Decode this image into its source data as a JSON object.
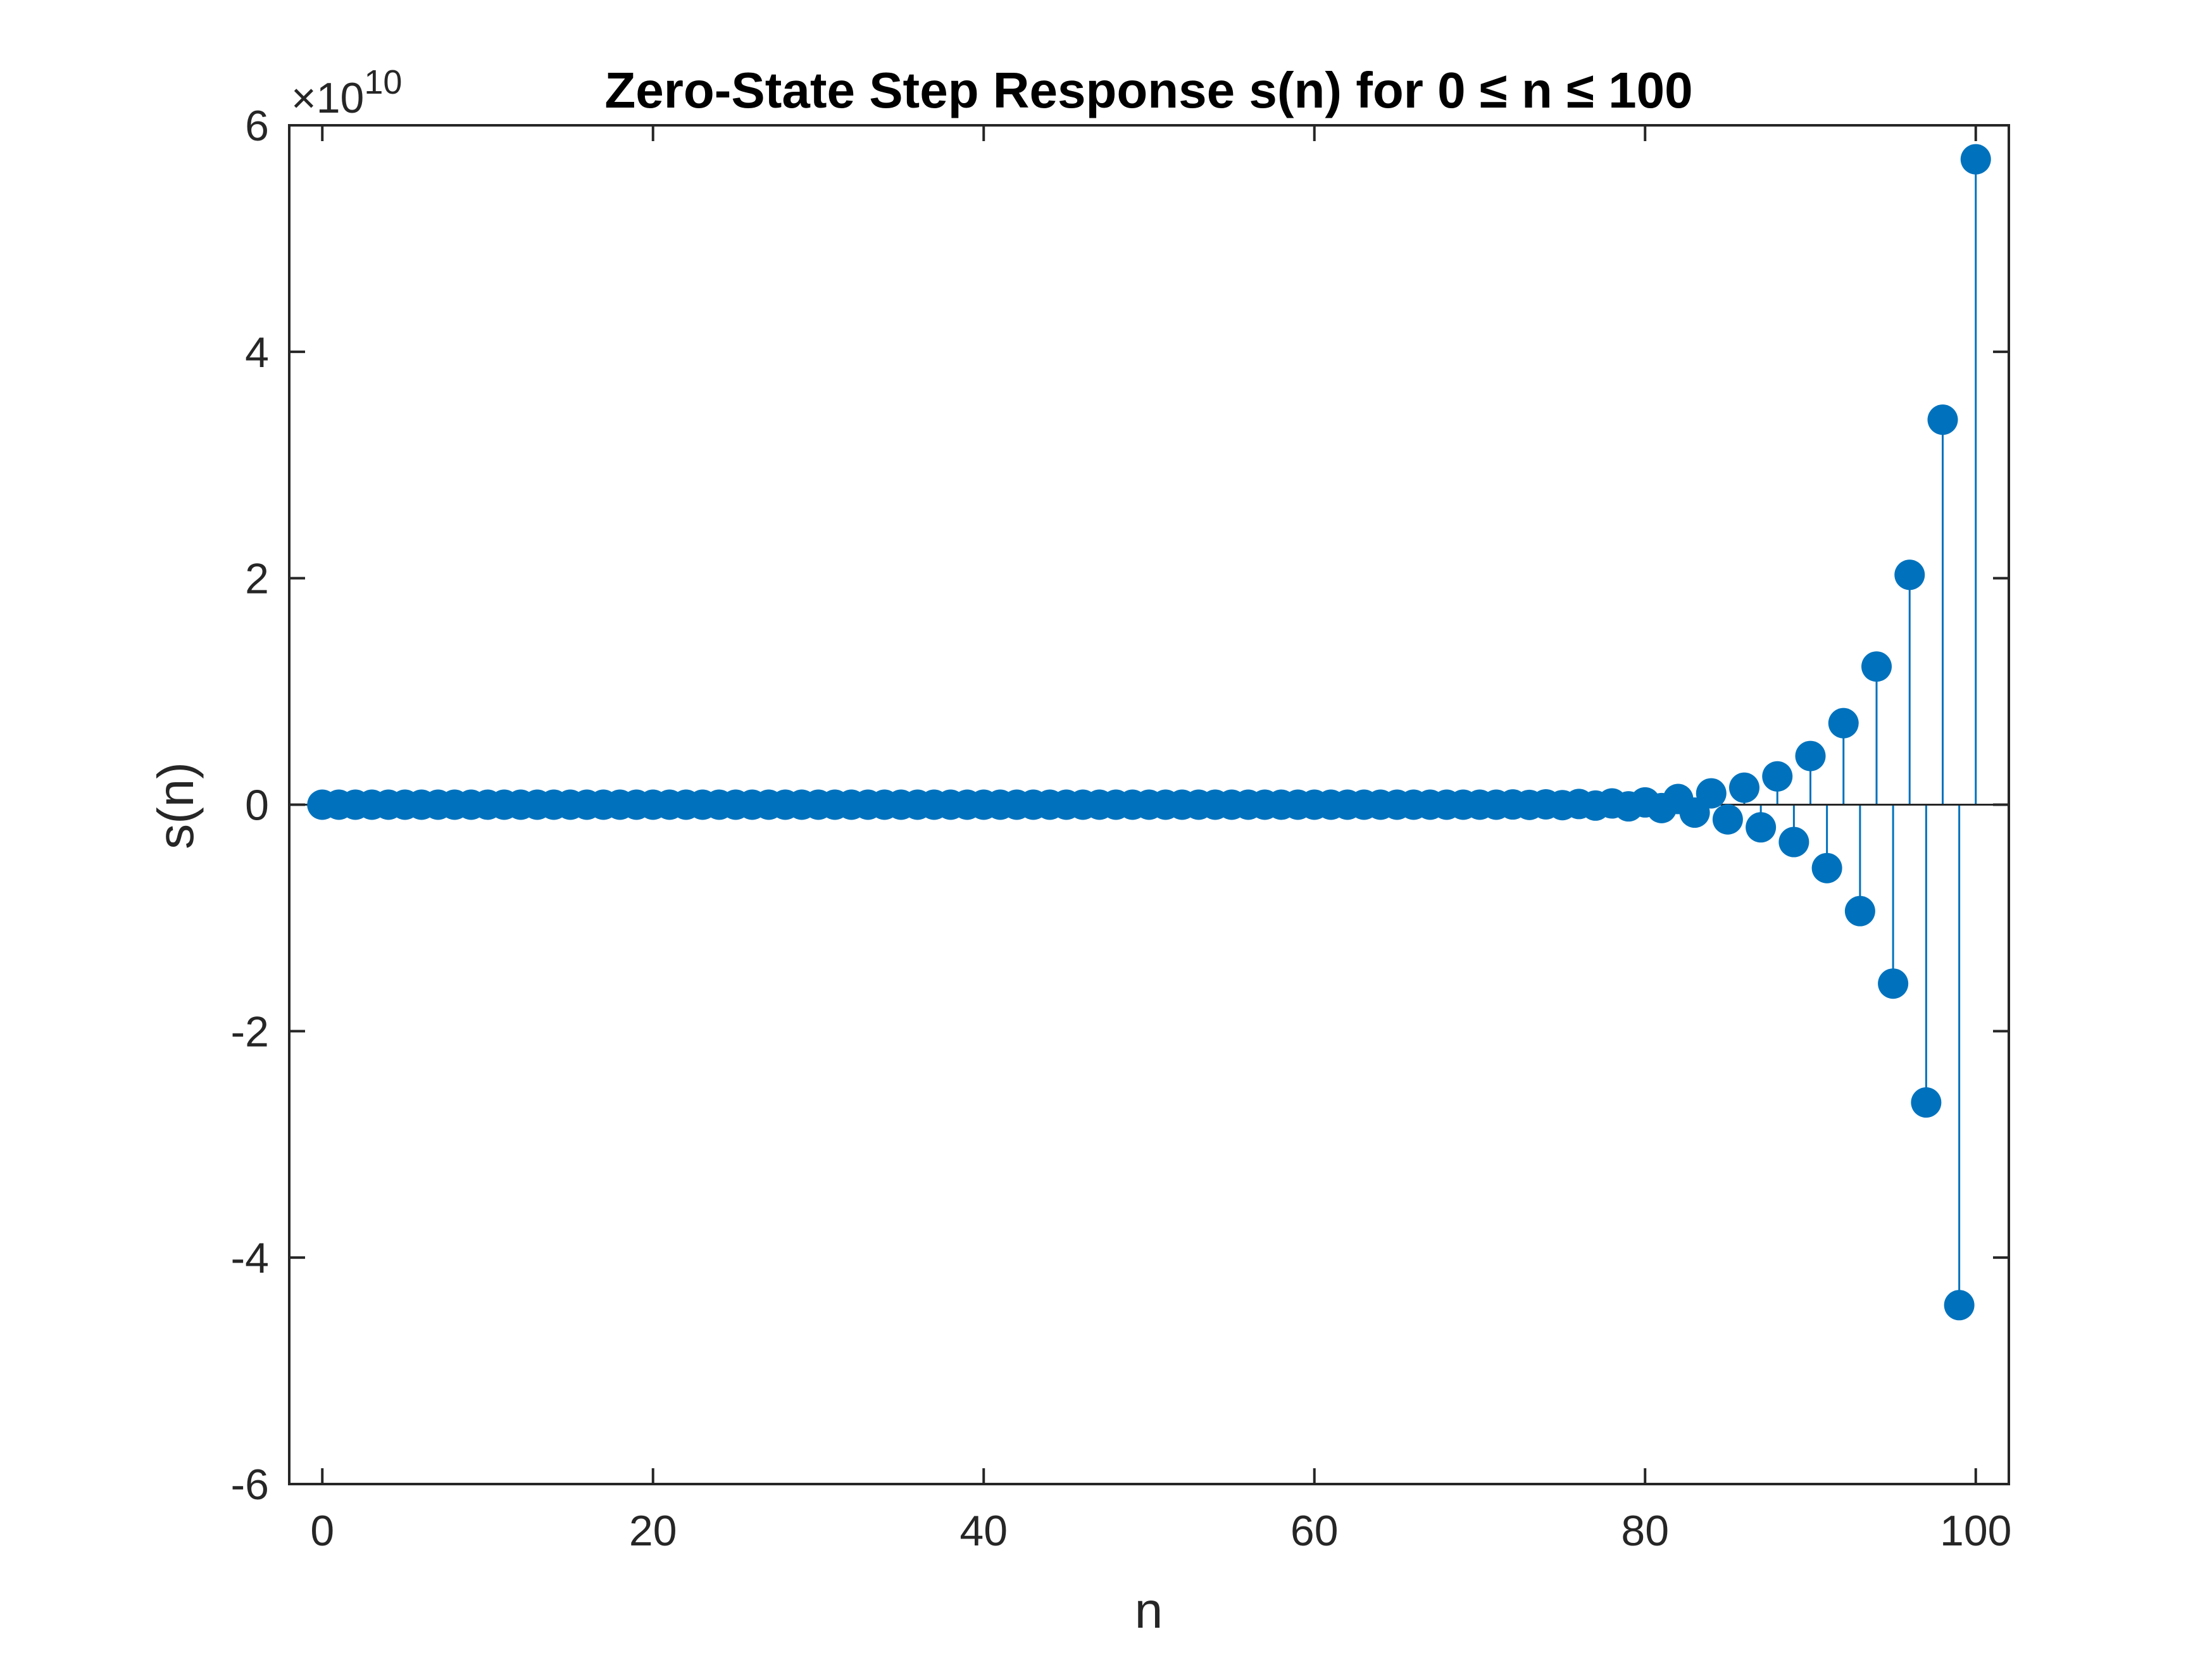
{
  "chart_data": {
    "type": "stem",
    "title": "Zero-State Step Response s(n) for 0 ≤ n ≤  100",
    "xlabel": "n",
    "ylabel": "s(n)",
    "exponent_label": "×10",
    "exponent_power": "10",
    "scale_factor": 10000000000,
    "xlim": [
      -2,
      102
    ],
    "ylim": [
      -6,
      6
    ],
    "x_ticks": [
      0,
      20,
      40,
      60,
      80,
      100
    ],
    "x_tick_labels": [
      "0",
      "20",
      "40",
      "60",
      "80",
      "100"
    ],
    "y_ticks": [
      -6,
      -4,
      -2,
      0,
      2,
      4,
      6
    ],
    "y_tick_labels": [
      "-6",
      "-4",
      "-2",
      "0",
      "2",
      "4",
      "6"
    ],
    "grid": false,
    "color": "#0072BD",
    "series": [
      {
        "x": [
          0,
          1,
          2,
          3,
          4,
          5,
          6,
          7,
          8,
          9,
          10,
          11,
          12,
          13,
          14,
          15,
          16,
          17,
          18,
          19,
          20,
          21,
          22,
          23,
          24,
          25,
          26,
          27,
          28,
          29,
          30,
          31,
          32,
          33,
          34,
          35,
          36,
          37,
          38,
          39,
          40,
          41,
          42,
          43,
          44,
          45,
          46,
          47,
          48,
          49,
          50,
          51,
          52,
          53,
          54,
          55,
          56,
          57,
          58,
          59,
          60,
          61,
          62,
          63,
          64,
          65,
          66,
          67,
          68,
          69,
          70,
          71,
          72,
          73,
          74,
          75,
          76,
          77,
          78,
          79,
          80,
          81,
          82,
          83,
          84,
          85,
          86,
          87,
          88,
          89,
          90,
          91,
          92,
          93,
          94,
          95,
          96,
          97,
          98,
          99,
          100
        ],
        "y": [
          0,
          0,
          0,
          0,
          0,
          0,
          0,
          0,
          0,
          0,
          0,
          0,
          0,
          0,
          0,
          0,
          0,
          0,
          0,
          0,
          0,
          0,
          0,
          0,
          0,
          0,
          0,
          0,
          0,
          0,
          0,
          0,
          0,
          0,
          0,
          0,
          0,
          0,
          0,
          0,
          0,
          0,
          0,
          0,
          0,
          0,
          0,
          0,
          0,
          0,
          0,
          0,
          0,
          0,
          0,
          0,
          0,
          0,
          0,
          0,
          0,
          0,
          0,
          0,
          0,
          0,
          0,
          0,
          0,
          0,
          0,
          0,
          0.002,
          -0.002,
          0.003,
          -0.004,
          0.006,
          -0.008,
          0.011,
          -0.015,
          0.02,
          -0.03,
          0.05,
          -0.07,
          0.1,
          -0.13,
          0.15,
          -0.2,
          0.25,
          -0.33,
          0.43,
          -0.56,
          0.72,
          -0.94,
          1.22,
          -1.58,
          2.03,
          -2.63,
          3.4,
          -4.42,
          5.7
        ]
      }
    ]
  }
}
